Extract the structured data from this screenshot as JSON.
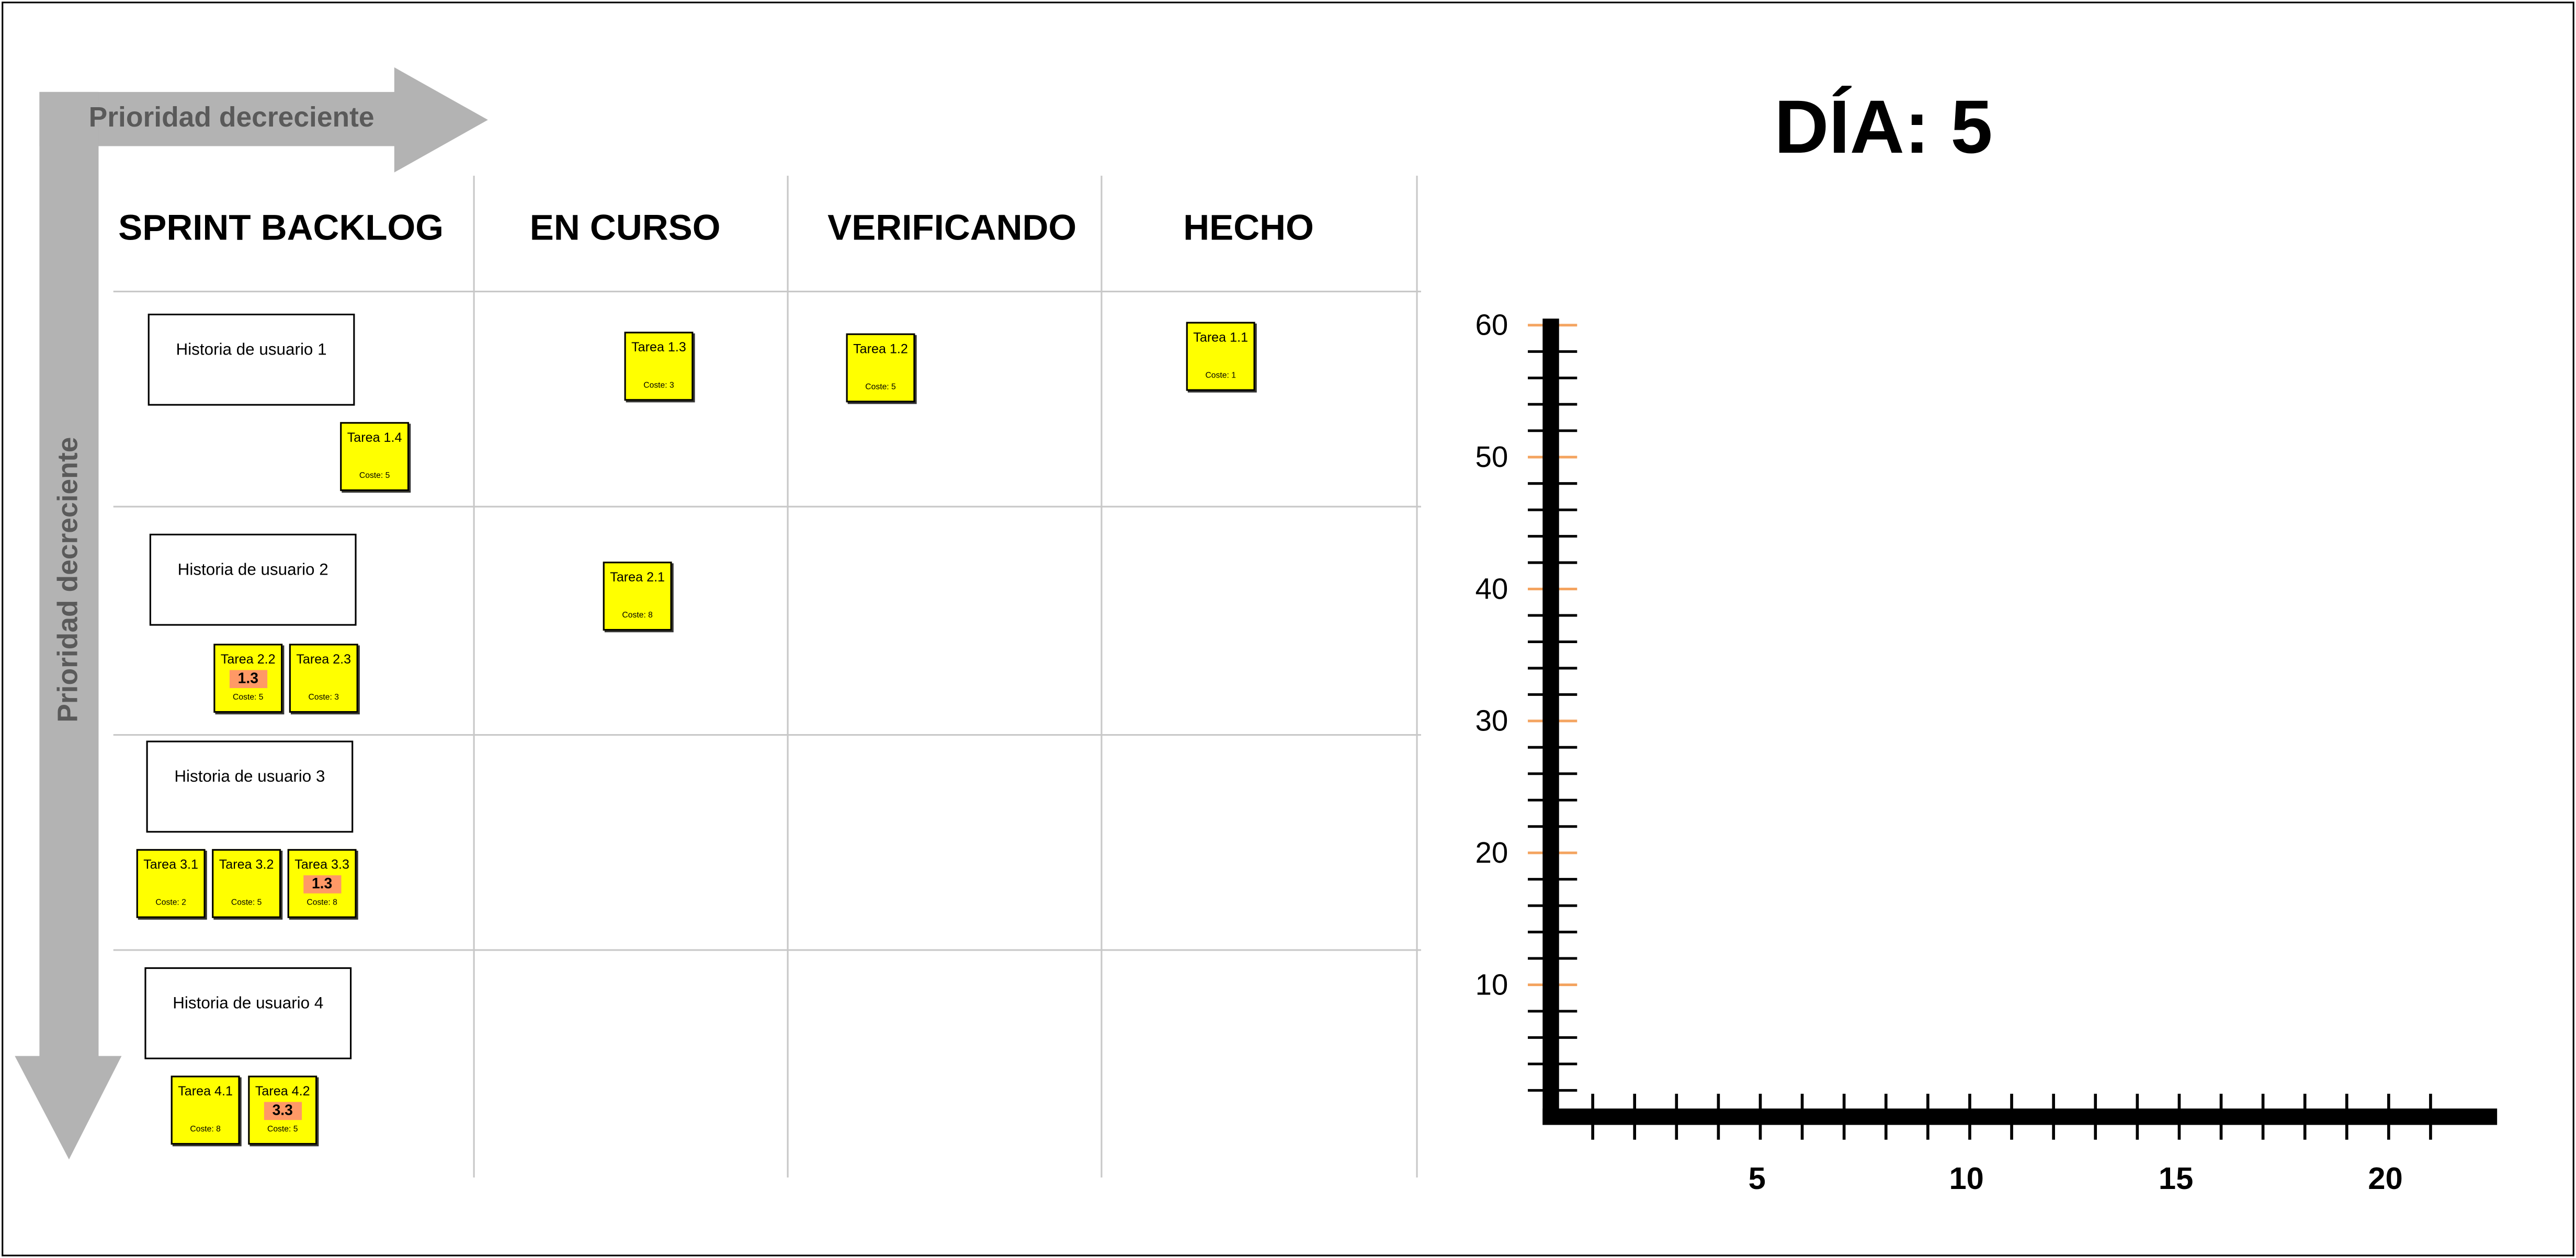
{
  "board": {
    "priority_horizontal": "Prioridad decreciente",
    "priority_vertical": "Prioridad decreciente",
    "columns": [
      "SPRINT BACKLOG",
      "EN CURSO",
      "VERIFICANDO",
      "HECHO"
    ],
    "stories": [
      {
        "label": "Historia de usuario 1"
      },
      {
        "label": "Historia de usuario 2"
      },
      {
        "label": "Historia de usuario 3"
      },
      {
        "label": "Historia de usuario 4"
      }
    ],
    "tasks": [
      {
        "name": "Tarea 1.3",
        "cost": "Coste: 3",
        "column": "EN CURSO"
      },
      {
        "name": "Tarea 1.2",
        "cost": "Coste: 5",
        "column": "VERIFICANDO"
      },
      {
        "name": "Tarea 1.1",
        "cost": "Coste: 1",
        "column": "HECHO"
      },
      {
        "name": "Tarea 1.4",
        "cost": "Coste: 5",
        "column": "SPRINT BACKLOG"
      },
      {
        "name": "Tarea 2.1",
        "cost": "Coste: 8",
        "column": "EN CURSO"
      },
      {
        "name": "Tarea 2.2",
        "cost": "Coste: 5",
        "badge": "1.3",
        "column": "SPRINT BACKLOG"
      },
      {
        "name": "Tarea 2.3",
        "cost": "Coste: 3",
        "column": "SPRINT BACKLOG"
      },
      {
        "name": "Tarea 3.1",
        "cost": "Coste: 2",
        "column": "SPRINT BACKLOG"
      },
      {
        "name": "Tarea 3.2",
        "cost": "Coste: 5",
        "column": "SPRINT BACKLOG"
      },
      {
        "name": "Tarea 3.3",
        "cost": "Coste: 8",
        "badge": "1.3",
        "column": "SPRINT BACKLOG"
      },
      {
        "name": "Tarea 4.1",
        "cost": "Coste: 8",
        "column": "SPRINT BACKLOG"
      },
      {
        "name": "Tarea 4.2",
        "cost": "Coste: 5",
        "badge": "3.3",
        "column": "SPRINT BACKLOG"
      }
    ]
  },
  "day_label": "DÍA: 5",
  "colors": {
    "card": "#ffff00",
    "badge": "#ff9966",
    "arrow": "#b3b3b3",
    "tick_major_y": "#f4a460"
  },
  "chart_data": {
    "type": "line",
    "y_ticks": [
      10,
      20,
      30,
      40,
      50,
      60
    ],
    "x_ticks": [
      5,
      10,
      15,
      20
    ],
    "ylim": [
      0,
      60
    ],
    "xlim": [
      0,
      22
    ],
    "series": []
  }
}
